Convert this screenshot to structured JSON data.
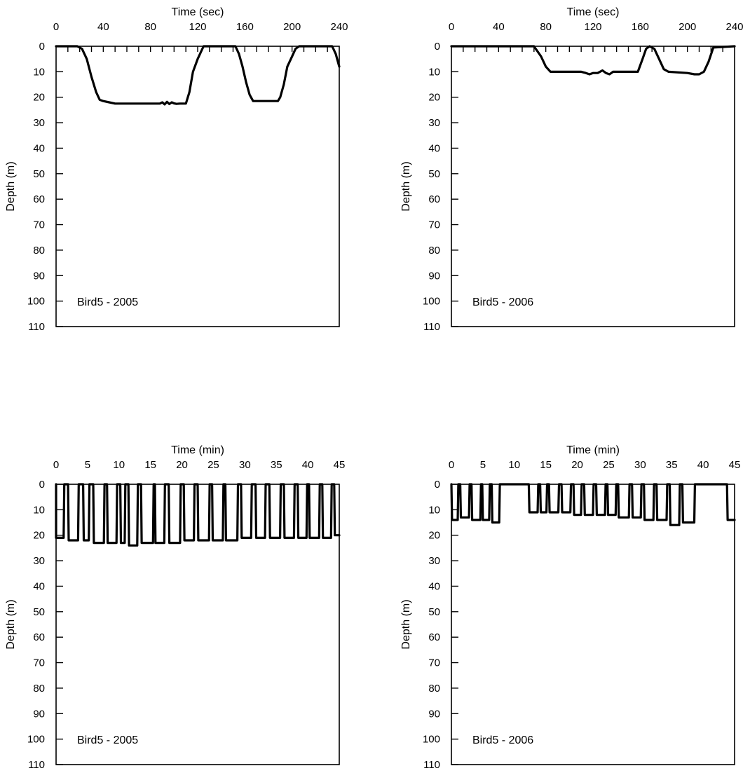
{
  "chart_data": [
    {
      "type": "line",
      "xlabel": "Time (sec)",
      "ylabel": "Depth (m)",
      "xlim": [
        0,
        240
      ],
      "ylim": [
        0,
        110
      ],
      "y_inverted": true,
      "x_ticks": [
        "0",
        "40",
        "80",
        "120",
        "160",
        "200",
        "240"
      ],
      "y_ticks": [
        "0",
        "10",
        "20",
        "30",
        "40",
        "50",
        "60",
        "70",
        "80",
        "90",
        "100",
        "110"
      ],
      "annotation": "Bird5 - 2005",
      "series": [
        {
          "x": [
            0,
            18,
            22,
            26,
            30,
            34,
            37,
            40,
            45,
            50,
            60,
            70,
            80,
            85,
            88,
            90,
            92,
            94,
            96,
            98,
            100,
            102,
            105,
            108,
            110,
            113,
            116,
            120,
            125,
            128,
            140,
            152,
            155,
            158,
            161,
            164,
            167,
            180,
            188,
            190,
            193,
            196,
            199,
            203,
            206,
            234,
            237,
            240
          ],
          "y": [
            0,
            0,
            1,
            5,
            12,
            18,
            21,
            21.5,
            22,
            22.5,
            22.5,
            22.5,
            22.5,
            22.5,
            22.5,
            22,
            22.8,
            21.8,
            22.7,
            22,
            22.4,
            22.6,
            22.5,
            22.5,
            22.5,
            18,
            10,
            5,
            0,
            0,
            0,
            0,
            3,
            8,
            14,
            19,
            21.5,
            21.5,
            21.5,
            20,
            15,
            8,
            5,
            1,
            0,
            0,
            3,
            8
          ]
        }
      ]
    },
    {
      "type": "line",
      "xlabel": "Time (sec)",
      "ylabel": "Depth (m)",
      "xlim": [
        0,
        240
      ],
      "ylim": [
        0,
        110
      ],
      "y_inverted": true,
      "x_ticks": [
        "0",
        "40",
        "80",
        "120",
        "160",
        "200",
        "240"
      ],
      "y_ticks": [
        "0",
        "10",
        "20",
        "30",
        "40",
        "50",
        "60",
        "70",
        "80",
        "90",
        "100",
        "110"
      ],
      "annotation": "Bird5 - 2006",
      "series": [
        {
          "x": [
            0,
            70,
            76,
            80,
            84,
            90,
            100,
            110,
            114,
            117,
            120,
            124,
            128,
            131,
            134,
            137,
            140,
            150,
            158,
            162,
            165,
            168,
            172,
            176,
            180,
            184,
            200,
            206,
            210,
            214,
            218,
            222,
            240
          ],
          "y": [
            0,
            0,
            4,
            8,
            10,
            10,
            10,
            10,
            10.5,
            11,
            10.5,
            10.5,
            9.5,
            10.5,
            11,
            10,
            10,
            10,
            10,
            5,
            1,
            0,
            1,
            5,
            9,
            10,
            10.5,
            11,
            11,
            10,
            6,
            0.5,
            0
          ]
        }
      ]
    },
    {
      "type": "line",
      "xlabel": "Time (min)",
      "ylabel": "Depth (m)",
      "xlim": [
        0,
        45
      ],
      "ylim": [
        0,
        110
      ],
      "y_inverted": true,
      "x_ticks": [
        "0",
        "5",
        "10",
        "15",
        "20",
        "25",
        "30",
        "35",
        "40",
        "45"
      ],
      "y_ticks": [
        "0",
        "10",
        "20",
        "30",
        "40",
        "50",
        "60",
        "70",
        "80",
        "90",
        "100",
        "110"
      ],
      "annotation": "Bird5 - 2005",
      "dive_bouts": [
        {
          "start": 0,
          "end": 1.2,
          "depth": 21
        },
        {
          "start": 2.0,
          "end": 3.5,
          "depth": 22
        },
        {
          "start": 4.4,
          "end": 5.2,
          "depth": 22
        },
        {
          "start": 6.0,
          "end": 7.6,
          "depth": 23
        },
        {
          "start": 8.2,
          "end": 9.6,
          "depth": 23
        },
        {
          "start": 10.3,
          "end": 10.9,
          "depth": 23
        },
        {
          "start": 11.6,
          "end": 12.9,
          "depth": 24
        },
        {
          "start": 13.6,
          "end": 15.4,
          "depth": 23
        },
        {
          "start": 15.8,
          "end": 17.2,
          "depth": 23
        },
        {
          "start": 18.0,
          "end": 19.7,
          "depth": 23
        },
        {
          "start": 20.4,
          "end": 21.9,
          "depth": 22
        },
        {
          "start": 22.6,
          "end": 24.3,
          "depth": 22
        },
        {
          "start": 24.9,
          "end": 26.5,
          "depth": 22
        },
        {
          "start": 27.0,
          "end": 28.8,
          "depth": 22
        },
        {
          "start": 29.5,
          "end": 31.0,
          "depth": 21
        },
        {
          "start": 31.8,
          "end": 33.2,
          "depth": 21
        },
        {
          "start": 34.0,
          "end": 35.6,
          "depth": 21
        },
        {
          "start": 36.3,
          "end": 37.8,
          "depth": 21
        },
        {
          "start": 38.5,
          "end": 39.8,
          "depth": 21
        },
        {
          "start": 40.3,
          "end": 41.8,
          "depth": 21
        },
        {
          "start": 42.4,
          "end": 43.7,
          "depth": 21
        },
        {
          "start": 44.3,
          "end": 45,
          "depth": 20
        }
      ]
    },
    {
      "type": "line",
      "xlabel": "Time (min)",
      "ylabel": "Depth (m)",
      "xlim": [
        0,
        45
      ],
      "ylim": [
        0,
        110
      ],
      "y_inverted": true,
      "x_ticks": [
        "0",
        "5",
        "10",
        "15",
        "20",
        "25",
        "30",
        "35",
        "40",
        "45"
      ],
      "y_ticks": [
        "0",
        "10",
        "20",
        "30",
        "40",
        "50",
        "60",
        "70",
        "80",
        "90",
        "100",
        "110"
      ],
      "annotation": "Bird5 - 2006",
      "dive_bouts": [
        {
          "start": 0.1,
          "end": 1.0,
          "depth": 14
        },
        {
          "start": 1.5,
          "end": 2.8,
          "depth": 13
        },
        {
          "start": 3.3,
          "end": 4.6,
          "depth": 14
        },
        {
          "start": 5.0,
          "end": 6.0,
          "depth": 14
        },
        {
          "start": 6.5,
          "end": 7.6,
          "depth": 15
        },
        {
          "start": 12.4,
          "end": 13.7,
          "depth": 11
        },
        {
          "start": 14.2,
          "end": 15.1,
          "depth": 11
        },
        {
          "start": 15.6,
          "end": 17.0,
          "depth": 11
        },
        {
          "start": 17.6,
          "end": 18.9,
          "depth": 11
        },
        {
          "start": 19.5,
          "end": 20.6,
          "depth": 12
        },
        {
          "start": 21.2,
          "end": 22.5,
          "depth": 12
        },
        {
          "start": 23.1,
          "end": 24.4,
          "depth": 12
        },
        {
          "start": 24.9,
          "end": 26.1,
          "depth": 12
        },
        {
          "start": 26.6,
          "end": 28.2,
          "depth": 13
        },
        {
          "start": 28.8,
          "end": 30.1,
          "depth": 13
        },
        {
          "start": 30.7,
          "end": 32.1,
          "depth": 14
        },
        {
          "start": 32.7,
          "end": 34.2,
          "depth": 14
        },
        {
          "start": 34.8,
          "end": 36.2,
          "depth": 16
        },
        {
          "start": 36.8,
          "end": 38.6,
          "depth": 15
        },
        {
          "start": 43.9,
          "end": 45,
          "depth": 14
        }
      ]
    }
  ]
}
